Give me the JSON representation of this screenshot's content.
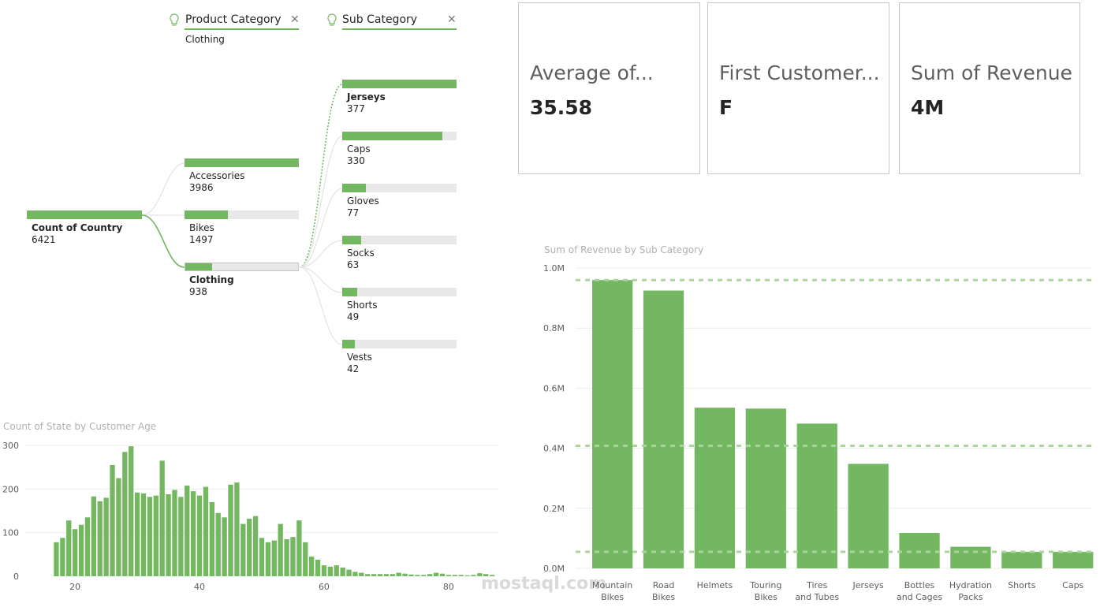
{
  "filters": {
    "product_category": {
      "label": "Product Category",
      "selected": "Clothing"
    },
    "sub_category": {
      "label": "Sub Category"
    }
  },
  "decomp_tree": {
    "root": {
      "label": "Count of Country",
      "value": "6421",
      "fraction": 1.0
    },
    "level1": [
      {
        "label": "Accessories",
        "value": "3986",
        "fraction": 1.0,
        "bold": false
      },
      {
        "label": "Bikes",
        "value": "1497",
        "fraction": 0.376,
        "bold": false
      },
      {
        "label": "Clothing",
        "value": "938",
        "fraction": 0.235,
        "bold": true
      }
    ],
    "level2": [
      {
        "label": "Jerseys",
        "value": "377",
        "fraction": 1.0,
        "bold": true
      },
      {
        "label": "Caps",
        "value": "330",
        "fraction": 0.875,
        "bold": false
      },
      {
        "label": "Gloves",
        "value": "77",
        "fraction": 0.204,
        "bold": false
      },
      {
        "label": "Socks",
        "value": "63",
        "fraction": 0.167,
        "bold": false
      },
      {
        "label": "Shorts",
        "value": "49",
        "fraction": 0.13,
        "bold": false
      },
      {
        "label": "Vests",
        "value": "42",
        "fraction": 0.111,
        "bold": false
      }
    ]
  },
  "cards": [
    {
      "title": "Average of...",
      "value": "35.58"
    },
    {
      "title": "First Customer...",
      "value": "F"
    },
    {
      "title": "Sum of Revenue",
      "value": "4M"
    }
  ],
  "colors": {
    "accent": "#73b761",
    "track": "#e8e8e8"
  },
  "watermark": {
    "text": "mostaql.com"
  },
  "chart_data": [
    {
      "type": "bar",
      "title": "Count of State by Customer Age",
      "x": [
        17,
        18,
        19,
        20,
        21,
        22,
        23,
        24,
        25,
        26,
        27,
        28,
        29,
        30,
        31,
        32,
        33,
        34,
        35,
        36,
        37,
        38,
        39,
        40,
        41,
        42,
        43,
        44,
        45,
        46,
        47,
        48,
        49,
        50,
        51,
        52,
        53,
        54,
        55,
        56,
        57,
        58,
        59,
        60,
        61,
        62,
        63,
        64,
        65,
        66,
        67,
        68,
        69,
        70,
        71,
        72,
        73,
        74,
        75,
        76,
        77,
        78,
        79,
        80,
        81,
        82,
        83,
        84,
        85,
        86,
        87
      ],
      "values": [
        78,
        88,
        128,
        108,
        118,
        135,
        183,
        172,
        180,
        255,
        225,
        285,
        298,
        192,
        190,
        182,
        185,
        265,
        188,
        198,
        182,
        208,
        195,
        185,
        205,
        170,
        145,
        135,
        210,
        215,
        120,
        132,
        138,
        88,
        78,
        82,
        120,
        85,
        90,
        128,
        78,
        45,
        38,
        25,
        22,
        25,
        20,
        15,
        10,
        8,
        5,
        5,
        5,
        5,
        5,
        8,
        6,
        4,
        3,
        3,
        5,
        8,
        6,
        3,
        3,
        3,
        2,
        3,
        7,
        5,
        3
      ],
      "xlabel": "",
      "ylabel": "",
      "xticks": [
        20,
        40,
        60,
        80
      ],
      "yticks": [
        0,
        100,
        200,
        300
      ],
      "ylim": [
        0,
        300
      ],
      "grid": true
    },
    {
      "type": "bar",
      "title": "Sum of Revenue by Sub Category",
      "categories": [
        "Mountain Bikes",
        "Road Bikes",
        "Helmets",
        "Touring Bikes",
        "Tires and Tubes",
        "Jerseys",
        "Bottles and Cages",
        "Hydration Packs",
        "Shorts",
        "Caps"
      ],
      "values": [
        960000,
        925000,
        535000,
        532000,
        482000,
        348000,
        118000,
        72000,
        55000,
        55000
      ],
      "ylim": [
        0,
        1000000
      ],
      "yticks": [
        "0.0M",
        "0.2M",
        "0.4M",
        "0.6M",
        "0.8M",
        "1.0M"
      ],
      "reference_lines": [
        960000,
        408000,
        55000
      ],
      "xlabel": "",
      "ylabel": "",
      "grid": true
    }
  ]
}
